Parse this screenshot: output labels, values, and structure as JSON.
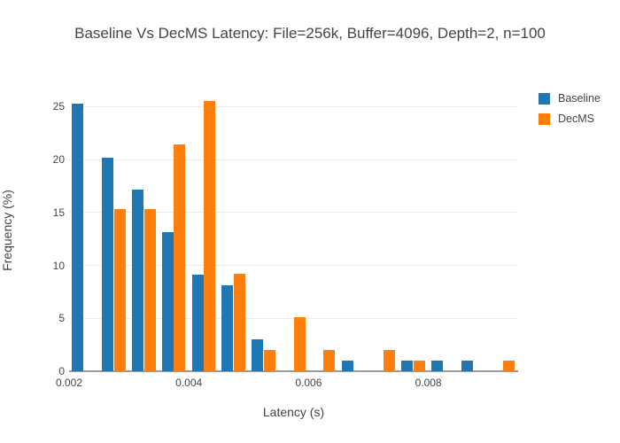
{
  "chart_data": {
    "type": "bar",
    "subtype": "grouped-histogram",
    "title": "Baseline Vs DecMS Latency: File=256k, Buffer=4096, Depth=2, n=100",
    "xlabel": "Latency (s)",
    "ylabel": "Frequency (%)",
    "categories": [
      0.00225,
      0.00275,
      0.00325,
      0.00375,
      0.00425,
      0.00475,
      0.00525,
      0.00575,
      0.00625,
      0.00675,
      0.00725,
      0.00775,
      0.00825,
      0.00875,
      0.00925
    ],
    "bin_width": 0.0005,
    "series": [
      {
        "name": "Baseline",
        "color": "#1f77b4",
        "values": [
          25.25,
          20.2,
          17.17,
          13.13,
          9.09,
          8.08,
          3.03,
          0,
          0,
          1.01,
          0,
          1.01,
          1.01,
          1.01,
          0
        ]
      },
      {
        "name": "DecMS",
        "color": "#ff7f0e",
        "values": [
          0,
          15.31,
          15.31,
          21.43,
          25.51,
          9.18,
          2.04,
          5.1,
          2.04,
          0,
          2.04,
          1.02,
          0,
          0,
          1.02
        ]
      }
    ],
    "xlim": [
      0.002,
      0.0095
    ],
    "ylim": [
      0,
      26.7
    ],
    "x_ticks": [
      {
        "value": 0.002,
        "label": "0.002"
      },
      {
        "value": 0.004,
        "label": "0.004"
      },
      {
        "value": 0.006,
        "label": "0.006"
      },
      {
        "value": 0.008,
        "label": "0.008"
      }
    ],
    "y_ticks": [
      {
        "value": 0,
        "label": "0"
      },
      {
        "value": 5,
        "label": "5"
      },
      {
        "value": 10,
        "label": "10"
      },
      {
        "value": 15,
        "label": "15"
      },
      {
        "value": 20,
        "label": "20"
      },
      {
        "value": 25,
        "label": "25"
      }
    ],
    "grid": "horizontal-only",
    "legend_position": "top-right",
    "bar_group_fill_ratio": 0.8,
    "colors": {
      "grid": "#ebebeb",
      "zeroline": "#9a9a9a",
      "text": "#444444",
      "background": "#ffffff"
    }
  }
}
